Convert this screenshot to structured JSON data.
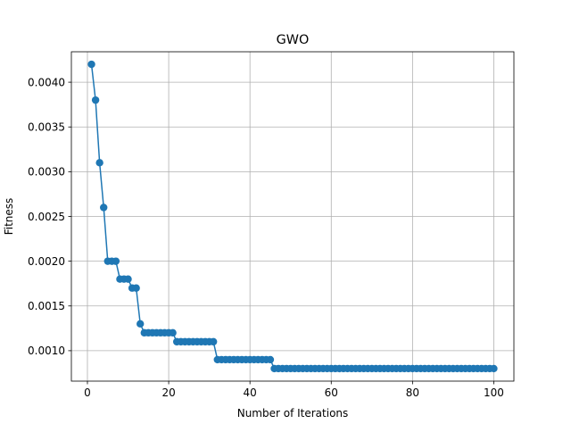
{
  "chart_data": {
    "type": "line",
    "title": "GWO",
    "xlabel": "Number of Iterations",
    "ylabel": "Fitness",
    "xlim": [
      -3.95,
      104.95
    ],
    "ylim": [
      0.00066,
      0.00434
    ],
    "xticks": [
      0,
      20,
      40,
      60,
      80,
      100
    ],
    "xtick_labels": [
      "0",
      "20",
      "40",
      "60",
      "80",
      "100"
    ],
    "yticks": [
      0.001,
      0.0015,
      0.002,
      0.0025,
      0.003,
      0.0035,
      0.004
    ],
    "ytick_labels": [
      "0.0010",
      "0.0015",
      "0.0020",
      "0.0025",
      "0.0030",
      "0.0035",
      "0.0040"
    ],
    "grid": true,
    "marker": "circle",
    "color": "#1f77b4",
    "x_start": 1,
    "series": [
      {
        "values": [
          0.0042,
          0.0038,
          0.0031,
          0.0026,
          0.002,
          0.002,
          0.002,
          0.0018,
          0.0018,
          0.0018,
          0.0017,
          0.0017,
          0.0013,
          0.0012,
          0.0012,
          0.0012,
          0.0012,
          0.0012,
          0.0012,
          0.0012,
          0.0012,
          0.0011,
          0.0011,
          0.0011,
          0.0011,
          0.0011,
          0.0011,
          0.0011,
          0.0011,
          0.0011,
          0.0011,
          0.0009,
          0.0009,
          0.0009,
          0.0009,
          0.0009,
          0.0009,
          0.0009,
          0.0009,
          0.0009,
          0.0009,
          0.0009,
          0.0009,
          0.0009,
          0.0009,
          0.0008,
          0.0008,
          0.0008,
          0.0008,
          0.0008,
          0.0008,
          0.0008,
          0.0008,
          0.0008,
          0.0008,
          0.0008,
          0.0008,
          0.0008,
          0.0008,
          0.0008,
          0.0008,
          0.0008,
          0.0008,
          0.0008,
          0.0008,
          0.0008,
          0.0008,
          0.0008,
          0.0008,
          0.0008,
          0.0008,
          0.0008,
          0.0008,
          0.0008,
          0.0008,
          0.0008,
          0.0008,
          0.0008,
          0.0008,
          0.0008,
          0.0008,
          0.0008,
          0.0008,
          0.0008,
          0.0008,
          0.0008,
          0.0008,
          0.0008,
          0.0008,
          0.0008,
          0.0008,
          0.0008,
          0.0008,
          0.0008,
          0.0008,
          0.0008,
          0.0008,
          0.0008,
          0.0008,
          0.0008
        ]
      }
    ]
  }
}
